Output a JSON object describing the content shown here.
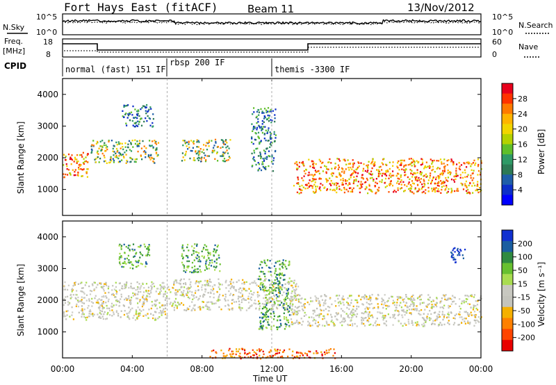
{
  "header": {
    "station": "Fort Hays East (fitACF)",
    "beam": "Beam 11",
    "date": "13/Nov/2012"
  },
  "noise_panel": {
    "left_label": "N.Sky",
    "right_label": "N.Search",
    "left_ticks": [
      "10^5",
      "10^0"
    ],
    "right_ticks": [
      "10^5",
      "10^0"
    ]
  },
  "freq_panel": {
    "left_label_line1": "Freq.",
    "left_label_line2": "[MHz]",
    "right_label": "Nave",
    "left_ticks": [
      "18",
      "8"
    ],
    "right_ticks": [
      "60",
      "0"
    ]
  },
  "cpid_panel": {
    "label": "CPID",
    "modes": [
      {
        "name": "normal (fast) 151 IF",
        "start_hour": 0,
        "end_hour": 6
      },
      {
        "name": "rbsp 200 IF",
        "start_hour": 6,
        "end_hour": 12
      },
      {
        "name": "themis -3300 IF",
        "start_hour": 12,
        "end_hour": 24
      }
    ]
  },
  "chart_data": [
    {
      "type": "heatmap",
      "name": "power",
      "ylabel": "Slant Range [km]",
      "xlabel": "Time UT",
      "xlim": [
        0,
        24
      ],
      "ylim": [
        180,
        4500
      ],
      "x_ticks": [
        "00:00",
        "04:00",
        "08:00",
        "12:00",
        "16:00",
        "20:00",
        "00:00"
      ],
      "y_ticks": [
        1000,
        2000,
        3000,
        4000
      ],
      "colorbar": {
        "label": "Power [dB]",
        "ticks": [
          "28",
          "24",
          "20",
          "16",
          "12",
          "8",
          "4"
        ],
        "colors": [
          "#e8001c",
          "#ff3300",
          "#ff7a00",
          "#ffb400",
          "#f2d500",
          "#b4d200",
          "#5fbf2a",
          "#2f9a66",
          "#2d7a55",
          "#1f5ea8",
          "#0d2fc8",
          "#0000ff"
        ]
      },
      "echo_bands": [
        {
          "hours": [
            0,
            1.5
          ],
          "range_km": [
            1400,
            2200
          ],
          "level": "strong"
        },
        {
          "hours": [
            1.6,
            5.5
          ],
          "range_km": [
            1850,
            2600
          ],
          "level": "medium"
        },
        {
          "hours": [
            3.4,
            5.2
          ],
          "range_km": [
            3000,
            3700
          ],
          "level": "weak"
        },
        {
          "hours": [
            6.8,
            9.6
          ],
          "range_km": [
            1900,
            2600
          ],
          "level": "medium"
        },
        {
          "hours": [
            10.8,
            12.2
          ],
          "range_km": [
            1600,
            3600
          ],
          "level": "weak"
        },
        {
          "hours": [
            13.2,
            24
          ],
          "range_km": [
            900,
            2000
          ],
          "level": "strong"
        }
      ]
    },
    {
      "type": "heatmap",
      "name": "velocity",
      "ylabel": "Slant Range [km]",
      "xlabel": "Time UT",
      "xlim": [
        0,
        24
      ],
      "ylim": [
        180,
        4500
      ],
      "x_ticks": [
        "00:00",
        "04:00",
        "08:00",
        "12:00",
        "16:00",
        "20:00",
        "00:00"
      ],
      "y_ticks": [
        1000,
        2000,
        3000,
        4000
      ],
      "colorbar": {
        "label": "Velocity [m s⁻¹]",
        "ticks": [
          "200",
          "100",
          "50",
          "15",
          "-15",
          "-50",
          "-100",
          "-200"
        ],
        "colors": [
          "#1030d0",
          "#1a5ea0",
          "#2f8a40",
          "#67c030",
          "#a9dc50",
          "#c8c8c0",
          "#c4c4bc",
          "#f5b000",
          "#ff8000",
          "#ff4400",
          "#e80000"
        ]
      },
      "echo_bands": [
        {
          "hours": [
            0,
            6
          ],
          "range_km": [
            1400,
            2600
          ],
          "level": "ground"
        },
        {
          "hours": [
            3.2,
            5.0
          ],
          "range_km": [
            3000,
            3800
          ],
          "level": "positive"
        },
        {
          "hours": [
            6.8,
            9.0
          ],
          "range_km": [
            2900,
            3800
          ],
          "level": "positive"
        },
        {
          "hours": [
            6,
            13.5
          ],
          "range_km": [
            1700,
            2700
          ],
          "level": "ground"
        },
        {
          "hours": [
            11.2,
            13.0
          ],
          "range_km": [
            1100,
            3300
          ],
          "level": "positive"
        },
        {
          "hours": [
            13,
            24
          ],
          "range_km": [
            1200,
            2200
          ],
          "level": "ground"
        },
        {
          "hours": [
            22.2,
            23.1
          ],
          "range_km": [
            3200,
            3700
          ],
          "level": "strong-positive"
        },
        {
          "hours": [
            8.4,
            15.6
          ],
          "range_km": [
            180,
            500
          ],
          "level": "negative"
        }
      ]
    }
  ]
}
